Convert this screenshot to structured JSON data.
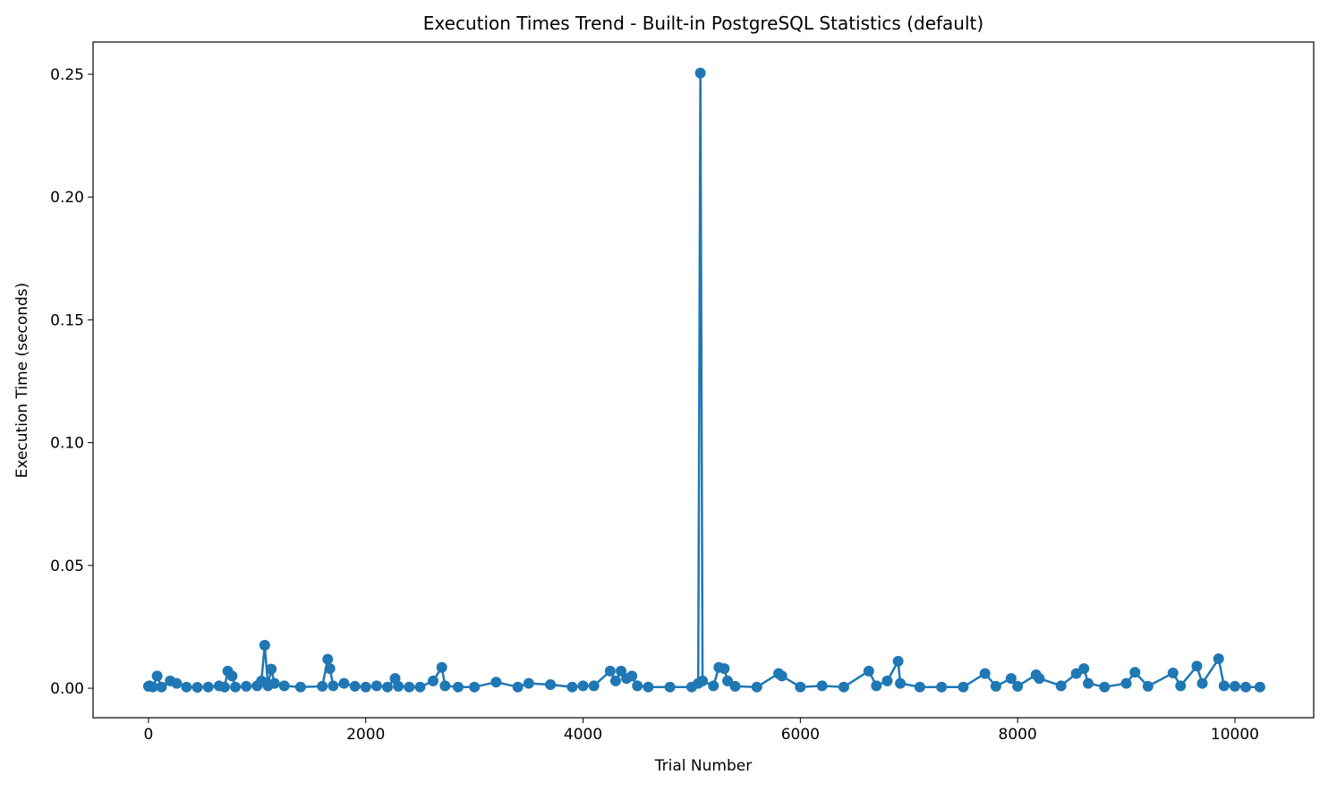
{
  "chart_data": {
    "type": "line",
    "title": "Execution Times Trend - Built-in PostgreSQL Statistics (default)",
    "x_label": "Trial Number",
    "y_label": "Execution Time (seconds)",
    "x": [
      0,
      10,
      40,
      80,
      120,
      200,
      260,
      350,
      450,
      550,
      650,
      700,
      730,
      770,
      800,
      900,
      1000,
      1040,
      1070,
      1100,
      1130,
      1160,
      1250,
      1400,
      1600,
      1650,
      1670,
      1700,
      1800,
      1900,
      2000,
      2100,
      2200,
      2270,
      2300,
      2400,
      2500,
      2620,
      2700,
      2730,
      2850,
      3000,
      3200,
      3400,
      3500,
      3700,
      3900,
      4000,
      4100,
      4250,
      4300,
      4350,
      4400,
      4450,
      4500,
      4600,
      4800,
      5000,
      5060,
      5080,
      5100,
      5200,
      5250,
      5300,
      5330,
      5400,
      5600,
      5800,
      5830,
      6000,
      6200,
      6400,
      6630,
      6700,
      6800,
      6900,
      6920,
      7100,
      7300,
      7500,
      7700,
      7800,
      7940,
      8000,
      8170,
      8200,
      8400,
      8540,
      8610,
      8650,
      8800,
      9000,
      9080,
      9200,
      9430,
      9500,
      9650,
      9700,
      9850,
      9900,
      10000,
      10100,
      10230
    ],
    "series": [
      {
        "color": "#1f77b4",
        "values": [
          0.0008,
          0.001,
          0.0005,
          0.005,
          0.0005,
          0.003,
          0.002,
          0.0005,
          0.0004,
          0.0005,
          0.001,
          0.0005,
          0.007,
          0.005,
          0.0005,
          0.0008,
          0.001,
          0.003,
          0.0175,
          0.001,
          0.0078,
          0.002,
          0.001,
          0.0005,
          0.0008,
          0.0118,
          0.008,
          0.001,
          0.002,
          0.0008,
          0.0005,
          0.001,
          0.0005,
          0.004,
          0.0008,
          0.0005,
          0.0005,
          0.003,
          0.0085,
          0.001,
          0.0005,
          0.0005,
          0.0025,
          0.0005,
          0.002,
          0.0015,
          0.0005,
          0.001,
          0.001,
          0.007,
          0.003,
          0.007,
          0.004,
          0.005,
          0.001,
          0.0005,
          0.0005,
          0.0005,
          0.002,
          0.2505,
          0.003,
          0.001,
          0.0085,
          0.008,
          0.003,
          0.0008,
          0.0005,
          0.006,
          0.005,
          0.0005,
          0.001,
          0.0005,
          0.007,
          0.001,
          0.003,
          0.011,
          0.002,
          0.0005,
          0.0005,
          0.0005,
          0.006,
          0.0008,
          0.004,
          0.0008,
          0.0055,
          0.004,
          0.001,
          0.006,
          0.008,
          0.002,
          0.0005,
          0.002,
          0.0065,
          0.0008,
          0.0062,
          0.001,
          0.009,
          0.002,
          0.012,
          0.001,
          0.0008,
          0.0005,
          0.0005
        ]
      }
    ],
    "xlim": [
      -510,
      10725
    ],
    "ylim": [
      -0.012,
      0.2631
    ],
    "xticks": [
      0,
      2000,
      4000,
      6000,
      8000,
      10000
    ],
    "yticks": [
      {
        "value": 0,
        "label": "0.00"
      },
      {
        "value": 0.05,
        "label": "0.05"
      },
      {
        "value": 0.1,
        "label": "0.10"
      },
      {
        "value": 0.15,
        "label": "0.15"
      },
      {
        "value": 0.2,
        "label": "0.20"
      },
      {
        "value": 0.25,
        "label": "0.25"
      }
    ]
  }
}
